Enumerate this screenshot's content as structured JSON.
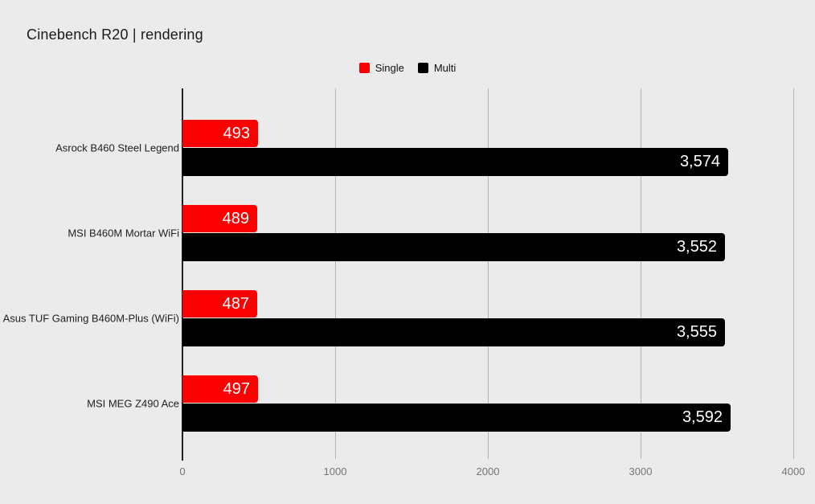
{
  "title": "Cinebench R20 | rendering",
  "legend": {
    "items": [
      {
        "label": "Single",
        "color": "#fb0000"
      },
      {
        "label": "Multi",
        "color": "#000000"
      }
    ]
  },
  "colors": {
    "background": "#ebebeb",
    "grid": "#b5b5b5",
    "axis": "#222222",
    "tick_label": "#757575",
    "category_label": "#212121",
    "bar_value_label": "#ffffff",
    "single": "#fb0000",
    "multi": "#000000"
  },
  "chart_data": {
    "type": "bar",
    "orientation": "horizontal",
    "title": "Cinebench R20 | rendering",
    "categories": [
      "Asrock B460 Steel Legend",
      "MSI B460M Mortar WiFi",
      "Asus TUF Gaming B460M-Plus (WiFi)",
      "MSI MEG Z490 Ace"
    ],
    "series": [
      {
        "name": "Single",
        "color": "#fb0000",
        "values": [
          493,
          489,
          487,
          497
        ],
        "labels": [
          "493",
          "489",
          "487",
          "497"
        ]
      },
      {
        "name": "Multi",
        "color": "#000000",
        "values": [
          3574,
          3552,
          3555,
          3592
        ],
        "labels": [
          "3,574",
          "3,552",
          "3,555",
          "3,592"
        ]
      }
    ],
    "xlabel": "",
    "ylabel": "",
    "xlim": [
      0,
      4000
    ],
    "xticks": [
      0,
      1000,
      2000,
      3000,
      4000
    ],
    "xtick_labels": [
      "0",
      "1000",
      "2000",
      "3000",
      "4000"
    ],
    "grid": "vertical-major-only",
    "legend_position": "top-center",
    "value_labels": "inside-end, white"
  }
}
